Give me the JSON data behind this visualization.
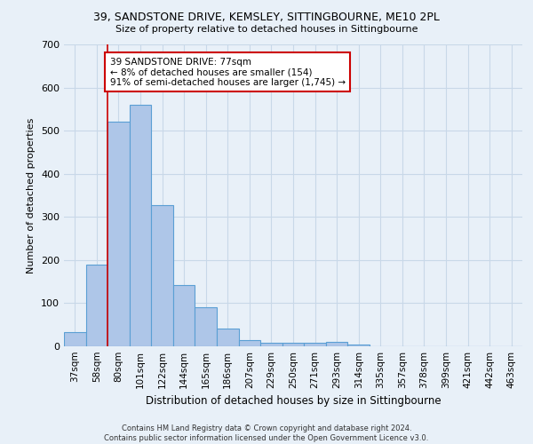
{
  "title_line1": "39, SANDSTONE DRIVE, KEMSLEY, SITTINGBOURNE, ME10 2PL",
  "title_line2": "Size of property relative to detached houses in Sittingbourne",
  "xlabel": "Distribution of detached houses by size in Sittingbourne",
  "ylabel": "Number of detached properties",
  "bar_labels": [
    "37sqm",
    "58sqm",
    "80sqm",
    "101sqm",
    "122sqm",
    "144sqm",
    "165sqm",
    "186sqm",
    "207sqm",
    "229sqm",
    "250sqm",
    "271sqm",
    "293sqm",
    "314sqm",
    "335sqm",
    "357sqm",
    "378sqm",
    "399sqm",
    "421sqm",
    "442sqm",
    "463sqm"
  ],
  "bar_values": [
    33,
    190,
    520,
    560,
    328,
    142,
    90,
    42,
    14,
    9,
    9,
    9,
    10,
    5,
    0,
    0,
    0,
    0,
    0,
    0,
    0
  ],
  "bar_color": "#aec6e8",
  "bar_edge_color": "#5a9fd4",
  "grid_color": "#c8d8e8",
  "background_color": "#e8f0f8",
  "vline_x": 2,
  "vline_color": "#cc0000",
  "annotation_text": "39 SANDSTONE DRIVE: 77sqm\n← 8% of detached houses are smaller (154)\n91% of semi-detached houses are larger (1,745) →",
  "annotation_box_color": "#ffffff",
  "annotation_box_edge": "#cc0000",
  "ylim": [
    0,
    700
  ],
  "footnote_line1": "Contains HM Land Registry data © Crown copyright and database right 2024.",
  "footnote_line2": "Contains public sector information licensed under the Open Government Licence v3.0."
}
